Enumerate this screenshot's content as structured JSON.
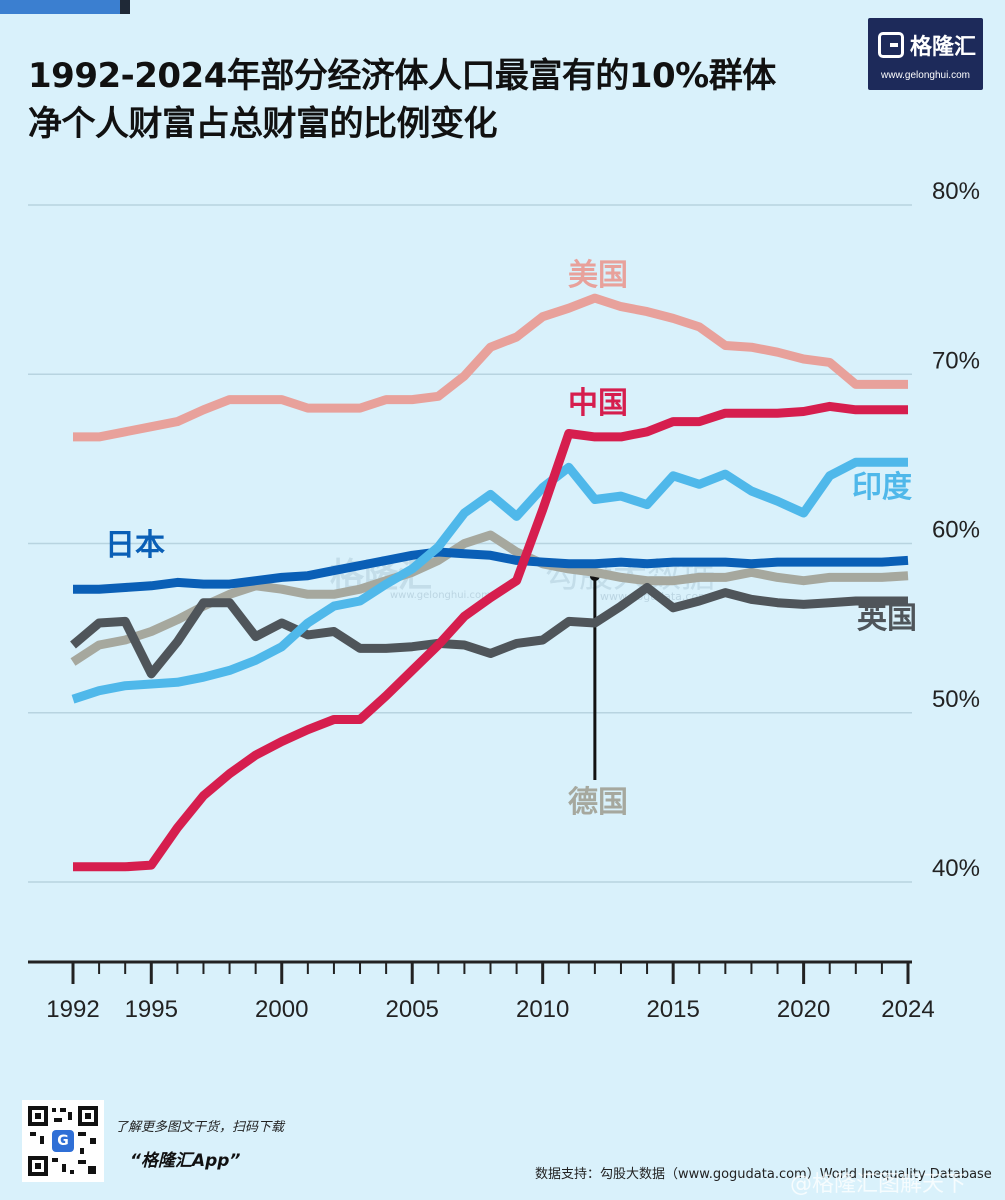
{
  "title_line1": "1992-2024年部分经济体人口最富有的10%群体",
  "title_line2": "净个人财富占总财富的比例变化",
  "brand": {
    "name": "格隆汇",
    "url": "www.gelonghui.com"
  },
  "watermark": {
    "left": "格隆汇",
    "left_url": "www.gelonghui.com",
    "right": "勾股大数据",
    "right_url": "www.gogudata.com"
  },
  "footer": {
    "promo": "了解更多图文干货，扫码下载",
    "app": "“格隆汇App”",
    "source": "数据支持：勾股大数据（www.gogudata.com）World Inequality Database",
    "weibo": "@格隆汇图解天下"
  },
  "colors": {
    "background": "#d9f1fb",
    "grid": "#b8d4e0",
    "us": "#e8a19b",
    "china": "#d61e4e",
    "india": "#4fb8ea",
    "japan": "#0a5fb6",
    "germany": "#a6a89e",
    "uk": "#4f555a",
    "axis": "#222222"
  },
  "chart_data": {
    "type": "line",
    "title": "1992-2024年部分经济体人口最富有的10%群体净个人财富占总财富的比例变化",
    "xlabel": "",
    "ylabel": "",
    "xlim": [
      1992,
      2024
    ],
    "ylim": [
      35,
      80
    ],
    "x_ticks": [
      1992,
      1993,
      1994,
      1995,
      1996,
      1997,
      1998,
      1999,
      2000,
      2001,
      2002,
      2003,
      2004,
      2005,
      2006,
      2007,
      2008,
      2009,
      2010,
      2011,
      2012,
      2013,
      2014,
      2015,
      2016,
      2017,
      2018,
      2019,
      2020,
      2021,
      2022,
      2023,
      2024
    ],
    "x_tick_labels": [
      "1992",
      "1995",
      "2000",
      "2005",
      "2010",
      "2015",
      "2020",
      "2024"
    ],
    "y_ticks": [
      40,
      50,
      60,
      70,
      80
    ],
    "y_tick_labels": [
      "40%",
      "50%",
      "60%",
      "70%",
      "80%"
    ],
    "grid": true,
    "annotation_germany_year": 2012,
    "series": [
      {
        "name": "美国",
        "key": "us",
        "x": [
          1992,
          1993,
          1994,
          1995,
          1996,
          1997,
          1998,
          1999,
          2000,
          2001,
          2002,
          2003,
          2004,
          2005,
          2006,
          2007,
          2008,
          2009,
          2010,
          2011,
          2012,
          2013,
          2014,
          2015,
          2016,
          2017,
          2018,
          2019,
          2020,
          2021,
          2022,
          2023,
          2024
        ],
        "values": [
          66.3,
          66.3,
          66.6,
          66.9,
          67.2,
          67.9,
          68.5,
          68.5,
          68.5,
          68.0,
          68.0,
          68.0,
          68.5,
          68.5,
          68.7,
          69.9,
          71.6,
          72.2,
          73.4,
          73.9,
          74.5,
          74.0,
          73.7,
          73.3,
          72.8,
          71.7,
          71.6,
          71.3,
          70.9,
          70.7,
          69.4,
          69.4,
          69.4
        ],
        "label_year": 2012
      },
      {
        "name": "中国",
        "key": "china",
        "x": [
          1992,
          1993,
          1994,
          1995,
          1996,
          1997,
          1998,
          1999,
          2000,
          2001,
          2002,
          2003,
          2004,
          2005,
          2006,
          2007,
          2008,
          2009,
          2010,
          2011,
          2012,
          2013,
          2014,
          2015,
          2016,
          2017,
          2018,
          2019,
          2020,
          2021,
          2022,
          2023,
          2024
        ],
        "values": [
          40.9,
          40.9,
          40.9,
          41.0,
          43.2,
          45.1,
          46.4,
          47.5,
          48.3,
          49.0,
          49.6,
          49.6,
          51.0,
          52.5,
          54.0,
          55.7,
          56.8,
          57.8,
          62.0,
          66.5,
          66.3,
          66.3,
          66.6,
          67.2,
          67.2,
          67.7,
          67.7,
          67.7,
          67.8,
          68.1,
          67.9,
          67.9,
          67.9
        ],
        "label_year": 2012
      },
      {
        "name": "印度",
        "key": "india",
        "x": [
          1992,
          1993,
          1994,
          1995,
          1996,
          1997,
          1998,
          1999,
          2000,
          2001,
          2002,
          2003,
          2004,
          2005,
          2006,
          2007,
          2008,
          2009,
          2010,
          2011,
          2012,
          2013,
          2014,
          2015,
          2016,
          2017,
          2018,
          2019,
          2020,
          2021,
          2022,
          2023,
          2024
        ],
        "values": [
          50.8,
          51.3,
          51.6,
          51.7,
          51.8,
          52.1,
          52.5,
          53.1,
          53.9,
          55.3,
          56.3,
          56.6,
          57.6,
          58.5,
          59.8,
          61.8,
          62.9,
          61.6,
          63.3,
          64.5,
          62.6,
          62.8,
          62.3,
          64.0,
          63.5,
          64.1,
          63.1,
          62.5,
          61.8,
          64.0,
          64.8,
          64.8,
          64.8
        ],
        "label_year": 2024
      },
      {
        "name": "日本",
        "key": "japan",
        "x": [
          1992,
          1993,
          1994,
          1995,
          1996,
          1997,
          1998,
          1999,
          2000,
          2001,
          2002,
          2003,
          2004,
          2005,
          2006,
          2007,
          2008,
          2009,
          2010,
          2011,
          2012,
          2013,
          2014,
          2015,
          2016,
          2017,
          2018,
          2019,
          2020,
          2021,
          2022,
          2023,
          2024
        ],
        "values": [
          57.3,
          57.3,
          57.4,
          57.5,
          57.7,
          57.6,
          57.6,
          57.8,
          58.0,
          58.1,
          58.4,
          58.7,
          59.0,
          59.3,
          59.5,
          59.4,
          59.3,
          59.0,
          58.9,
          58.8,
          58.8,
          58.9,
          58.8,
          58.9,
          58.9,
          58.9,
          58.8,
          58.9,
          58.9,
          58.9,
          58.9,
          58.9,
          59.0
        ],
        "label_year": 1993
      },
      {
        "name": "德国",
        "key": "germany",
        "x": [
          1992,
          1993,
          1994,
          1995,
          1996,
          1997,
          1998,
          1999,
          2000,
          2001,
          2002,
          2003,
          2004,
          2005,
          2006,
          2007,
          2008,
          2009,
          2010,
          2011,
          2012,
          2013,
          2014,
          2015,
          2016,
          2017,
          2018,
          2019,
          2020,
          2021,
          2022,
          2023,
          2024
        ],
        "values": [
          53.0,
          54.0,
          54.3,
          54.8,
          55.5,
          56.3,
          57.0,
          57.5,
          57.3,
          57.0,
          57.0,
          57.3,
          57.8,
          58.3,
          59.0,
          60.0,
          60.5,
          59.5,
          58.8,
          58.5,
          58.3,
          58.0,
          57.8,
          57.8,
          58.0,
          58.0,
          58.3,
          58.0,
          57.8,
          58.0,
          58.0,
          58.0,
          58.1
        ],
        "label_year": 2012
      },
      {
        "name": "英国",
        "key": "uk",
        "x": [
          1992,
          1993,
          1994,
          1995,
          1996,
          1997,
          1998,
          1999,
          2000,
          2001,
          2002,
          2003,
          2004,
          2005,
          2006,
          2007,
          2008,
          2009,
          2010,
          2011,
          2012,
          2013,
          2014,
          2015,
          2016,
          2017,
          2018,
          2019,
          2020,
          2021,
          2022,
          2023,
          2024
        ],
        "values": [
          54.0,
          55.3,
          55.4,
          52.3,
          54.2,
          56.5,
          56.5,
          54.5,
          55.3,
          54.6,
          54.8,
          53.8,
          53.8,
          53.9,
          54.1,
          54.0,
          53.5,
          54.1,
          54.3,
          55.4,
          55.3,
          56.3,
          57.4,
          56.2,
          56.6,
          57.1,
          56.7,
          56.5,
          56.4,
          56.5,
          56.6,
          56.6,
          56.6
        ],
        "label_year": 2024
      }
    ]
  }
}
